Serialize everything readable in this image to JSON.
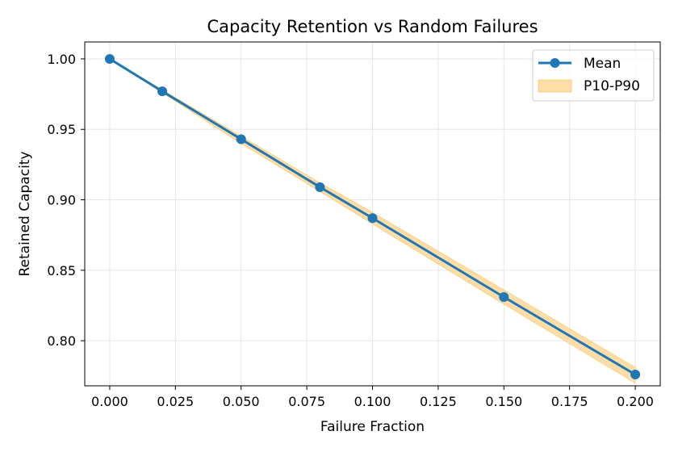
{
  "chart_data": {
    "type": "line",
    "title": "Capacity Retention vs Random Failures",
    "xlabel": "Failure Fraction",
    "ylabel": "Retained Capacity",
    "xlim": [
      -0.0095,
      0.2095
    ],
    "ylim": [
      0.768,
      1.012
    ],
    "x_ticks": [
      "0.000",
      "0.025",
      "0.050",
      "0.075",
      "0.100",
      "0.125",
      "0.150",
      "0.175",
      "0.200"
    ],
    "y_ticks": [
      "0.80",
      "0.85",
      "0.90",
      "0.95",
      "1.00"
    ],
    "grid": true,
    "legend_position": "top-right",
    "series": [
      {
        "name": "Mean",
        "kind": "line-marker",
        "color": "#1f77b4",
        "x": [
          0.0,
          0.02,
          0.05,
          0.08,
          0.1,
          0.15,
          0.2
        ],
        "y": [
          1.0,
          0.977,
          0.943,
          0.909,
          0.887,
          0.831,
          0.776
        ]
      },
      {
        "name": "P10-P90",
        "kind": "band",
        "color": "#ffdda8",
        "edge_color": "#ffcf80",
        "x": [
          0.0,
          0.02,
          0.05,
          0.08,
          0.1,
          0.15,
          0.2
        ],
        "y_low": [
          1.0,
          0.976,
          0.94,
          0.906,
          0.883,
          0.826,
          0.77
        ],
        "y_high": [
          1.0,
          0.978,
          0.945,
          0.912,
          0.891,
          0.836,
          0.781
        ]
      }
    ]
  }
}
